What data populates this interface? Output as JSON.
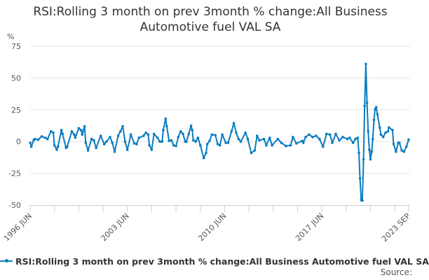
{
  "chart_data": {
    "type": "line",
    "title": "RSI:Rolling 3 month on prev 3month % change:All Business Automotive fuel VAL SA",
    "ylabel": "%",
    "xlabel": "",
    "ylim": [
      -50,
      75
    ],
    "yticks": [
      75,
      50,
      25,
      0,
      -25,
      -50
    ],
    "xlim": [
      "1996-06",
      "2023-09"
    ],
    "xtick_labels": [
      {
        "date": "1996-06",
        "label": "1996 JUN"
      },
      {
        "date": "2003-06",
        "label": "2003 JUN"
      },
      {
        "date": "2010-06",
        "label": "2010 JUN"
      },
      {
        "date": "2017-06",
        "label": "2017 JUN"
      },
      {
        "date": "2023-09",
        "label": "2023 SEP"
      }
    ],
    "grid": true,
    "legend_placement": "bottom",
    "color": "#0a7cc1",
    "series": [
      {
        "name": "RSI:Rolling 3 month on prev 3month % change:All Business Automotive fuel VAL SA",
        "points": [
          [
            "1996-06",
            -1
          ],
          [
            "1996-07",
            -4
          ],
          [
            "1996-09",
            1
          ],
          [
            "1996-10",
            2
          ],
          [
            "1997-01",
            1.5
          ],
          [
            "1997-04",
            4
          ],
          [
            "1997-07",
            3
          ],
          [
            "1997-09",
            2
          ],
          [
            "1997-12",
            8
          ],
          [
            "1998-02",
            7
          ],
          [
            "1998-03",
            -3
          ],
          [
            "1998-05",
            -6.5
          ],
          [
            "1998-06",
            -4
          ],
          [
            "1998-09",
            9
          ],
          [
            "1998-10",
            6
          ],
          [
            "1999-01",
            -5
          ],
          [
            "1999-02",
            -4
          ],
          [
            "1999-06",
            8
          ],
          [
            "1999-08",
            5.5
          ],
          [
            "1999-09",
            3
          ],
          [
            "1999-12",
            10.5
          ],
          [
            "2000-02",
            9
          ],
          [
            "2000-03",
            5.5
          ],
          [
            "2000-05",
            12
          ],
          [
            "2000-06",
            -1
          ],
          [
            "2000-08",
            -7
          ],
          [
            "2000-11",
            2
          ],
          [
            "2001-01",
            1
          ],
          [
            "2001-03",
            -5
          ],
          [
            "2001-07",
            4.5
          ],
          [
            "2001-10",
            -2
          ],
          [
            "2001-12",
            0
          ],
          [
            "2002-03",
            3.5
          ],
          [
            "2002-05",
            -1
          ],
          [
            "2002-07",
            -8
          ],
          [
            "2002-10",
            4.5
          ],
          [
            "2002-12",
            8
          ],
          [
            "2003-02",
            12
          ],
          [
            "2003-04",
            0
          ],
          [
            "2003-06",
            -6.5
          ],
          [
            "2003-09",
            5.5
          ],
          [
            "2003-12",
            -1.5
          ],
          [
            "2004-02",
            -2
          ],
          [
            "2004-04",
            3
          ],
          [
            "2004-08",
            4.5
          ],
          [
            "2004-10",
            7
          ],
          [
            "2004-12",
            5.5
          ],
          [
            "2005-01",
            -3
          ],
          [
            "2005-03",
            -6.5
          ],
          [
            "2005-05",
            6
          ],
          [
            "2005-08",
            3
          ],
          [
            "2005-10",
            0
          ],
          [
            "2005-12",
            0
          ],
          [
            "2006-01",
            9
          ],
          [
            "2006-03",
            18
          ],
          [
            "2006-04",
            12
          ],
          [
            "2006-06",
            0.5
          ],
          [
            "2006-08",
            1
          ],
          [
            "2006-10",
            -3
          ],
          [
            "2006-12",
            -3.5
          ],
          [
            "2007-02",
            3.5
          ],
          [
            "2007-04",
            8
          ],
          [
            "2007-06",
            6
          ],
          [
            "2007-08",
            0
          ],
          [
            "2007-09",
            0
          ],
          [
            "2007-11",
            6
          ],
          [
            "2008-01",
            12.5
          ],
          [
            "2008-02",
            9
          ],
          [
            "2008-03",
            1
          ],
          [
            "2008-05",
            0
          ],
          [
            "2008-07",
            3
          ],
          [
            "2008-09",
            -3
          ],
          [
            "2008-12",
            -13
          ],
          [
            "2009-02",
            -9
          ],
          [
            "2009-03",
            -2
          ],
          [
            "2009-05",
            0.5
          ],
          [
            "2009-07",
            5.5
          ],
          [
            "2009-10",
            5
          ],
          [
            "2009-12",
            -2
          ],
          [
            "2010-02",
            -3
          ],
          [
            "2010-04",
            5.5
          ],
          [
            "2010-07",
            -1
          ],
          [
            "2010-09",
            -1
          ],
          [
            "2010-12",
            8
          ],
          [
            "2011-02",
            14.5
          ],
          [
            "2011-04",
            7
          ],
          [
            "2011-06",
            2
          ],
          [
            "2011-08",
            0
          ],
          [
            "2011-12",
            7
          ],
          [
            "2012-02",
            2
          ],
          [
            "2012-05",
            -9
          ],
          [
            "2012-08",
            -7
          ],
          [
            "2012-10",
            4.5
          ],
          [
            "2012-12",
            1
          ],
          [
            "2013-04",
            2
          ],
          [
            "2013-06",
            -3
          ],
          [
            "2013-09",
            3
          ],
          [
            "2013-11",
            -3
          ],
          [
            "2014-04",
            2
          ],
          [
            "2014-07",
            -1
          ],
          [
            "2014-11",
            -3.5
          ],
          [
            "2015-03",
            -3
          ],
          [
            "2015-05",
            3.5
          ],
          [
            "2015-08",
            -1.5
          ],
          [
            "2016-01",
            0.5
          ],
          [
            "2016-02",
            -1
          ],
          [
            "2016-04",
            3.5
          ],
          [
            "2016-07",
            5.5
          ],
          [
            "2016-10",
            3.5
          ],
          [
            "2017-01",
            4.5
          ],
          [
            "2017-04",
            2
          ],
          [
            "2017-07",
            -4
          ],
          [
            "2017-10",
            6
          ],
          [
            "2018-01",
            5.5
          ],
          [
            "2018-03",
            -1
          ],
          [
            "2018-06",
            6
          ],
          [
            "2018-09",
            1
          ],
          [
            "2018-12",
            3.5
          ],
          [
            "2019-04",
            2
          ],
          [
            "2019-06",
            3
          ],
          [
            "2019-09",
            -1
          ],
          [
            "2019-11",
            2
          ],
          [
            "2020-01",
            3
          ],
          [
            "2020-02",
            -9
          ],
          [
            "2020-03",
            -29
          ],
          [
            "2020-04",
            -46
          ],
          [
            "2020-05",
            -46.5
          ],
          [
            "2020-06",
            -14
          ],
          [
            "2020-07",
            28
          ],
          [
            "2020-08",
            61
          ],
          [
            "2020-09",
            30.5
          ],
          [
            "2020-10",
            8
          ],
          [
            "2020-11",
            -6.5
          ],
          [
            "2020-12",
            -14
          ],
          [
            "2021-01",
            -8
          ],
          [
            "2021-02",
            2
          ],
          [
            "2021-03",
            17
          ],
          [
            "2021-04",
            25.5
          ],
          [
            "2021-05",
            27
          ],
          [
            "2021-06",
            21.5
          ],
          [
            "2021-08",
            11
          ],
          [
            "2021-09",
            5.5
          ],
          [
            "2021-11",
            3.5
          ],
          [
            "2022-01",
            7
          ],
          [
            "2022-03",
            8
          ],
          [
            "2022-04",
            11
          ],
          [
            "2022-07",
            9
          ],
          [
            "2022-08",
            -2
          ],
          [
            "2022-10",
            -8
          ],
          [
            "2022-12",
            -1
          ],
          [
            "2023-01",
            -1
          ],
          [
            "2023-03",
            -7
          ],
          [
            "2023-05",
            -8
          ],
          [
            "2023-07",
            -4
          ],
          [
            "2023-09",
            1.5
          ]
        ]
      }
    ]
  },
  "legend": {
    "label": "RSI:Rolling 3 month on prev 3month % change:All Business Automotive fuel VAL SA"
  },
  "source": {
    "label": "Source:"
  }
}
